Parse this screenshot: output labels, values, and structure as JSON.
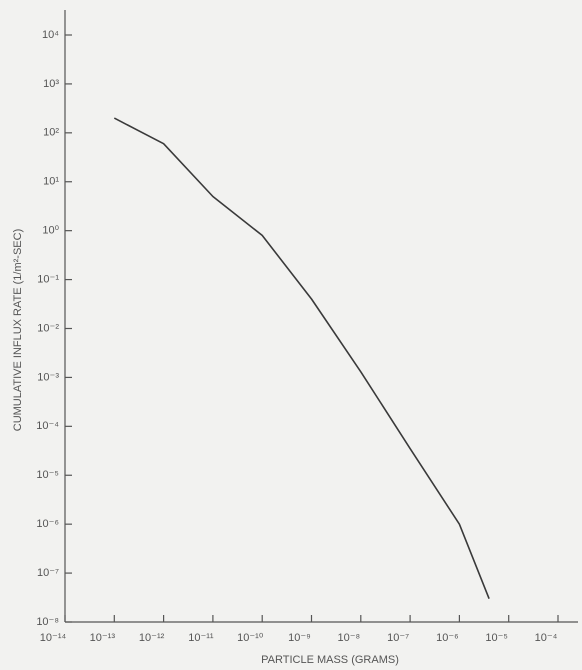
{
  "chart_data": {
    "type": "line",
    "x_label": "PARTICLE MASS (GRAMS)",
    "y_label": "CUMULATIVE INFLUX RATE (1/m²-SEC)",
    "x_log": true,
    "y_log": true,
    "color": "#3a3a3a",
    "x": [
      1e-13,
      1e-12,
      1e-11,
      1e-10,
      1e-09,
      1e-08,
      1e-07,
      1e-06,
      4e-06
    ],
    "values": [
      200,
      60,
      5,
      0.8,
      0.04,
      0.0013,
      3.5e-05,
      1e-06,
      3e-08
    ],
    "xlim": [
      1e-14,
      0.0001
    ],
    "xticks": [
      {
        "value": 1e-14,
        "label": "10⁻¹⁴"
      },
      {
        "value": 1e-13,
        "label": "10⁻¹³"
      },
      {
        "value": 1e-12,
        "label": "10⁻¹²"
      },
      {
        "value": 1e-11,
        "label": "10⁻¹¹"
      },
      {
        "value": 1e-10,
        "label": "10⁻¹⁰"
      },
      {
        "value": 1e-09,
        "label": "10⁻⁹"
      },
      {
        "value": 1e-08,
        "label": "10⁻⁸"
      },
      {
        "value": 1e-07,
        "label": "10⁻⁷"
      },
      {
        "value": 1e-06,
        "label": "10⁻⁶"
      },
      {
        "value": 1e-05,
        "label": "10⁻⁵"
      },
      {
        "value": 0.0001,
        "label": "10⁻⁴"
      }
    ],
    "ylim": [
      1e-08,
      10000.0
    ],
    "yticks": [
      {
        "value": 1e-08,
        "label": "10⁻⁸"
      },
      {
        "value": 1e-07,
        "label": "10⁻⁷"
      },
      {
        "value": 1e-06,
        "label": "10⁻⁶"
      },
      {
        "value": 1e-05,
        "label": "10⁻⁵"
      },
      {
        "value": 0.0001,
        "label": "10⁻⁴"
      },
      {
        "value": 0.001,
        "label": "10⁻³"
      },
      {
        "value": 0.01,
        "label": "10⁻²"
      },
      {
        "value": 0.1,
        "label": "10⁻¹"
      },
      {
        "value": 1,
        "label": "10⁰"
      },
      {
        "value": 10,
        "label": "10¹"
      },
      {
        "value": 100,
        "label": "10²"
      },
      {
        "value": 1000,
        "label": "10³"
      },
      {
        "value": 10000,
        "label": "10⁴"
      }
    ]
  }
}
